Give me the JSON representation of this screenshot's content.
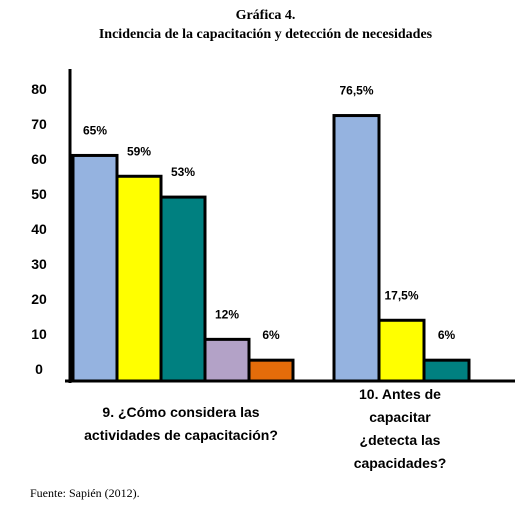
{
  "header": {
    "title": "Gráfica 4.",
    "subtitle": "Incidencia de la capacitación y detección de necesidades"
  },
  "footer": {
    "source": "Fuente: Sapién (2012)."
  },
  "chart_data": {
    "type": "bar",
    "y_ticks": [
      "80",
      "70",
      "60",
      "50",
      "40",
      "30",
      "20",
      "10",
      "0"
    ],
    "ylim": [
      0,
      80
    ],
    "grid": false,
    "groups": [
      {
        "label_lines": [
          "9. ¿Cómo considera las",
          "actividades de capacitación?"
        ],
        "bars": [
          {
            "value": 65,
            "label": "65%",
            "color": "#95b3e0"
          },
          {
            "value": 59,
            "label": "59%",
            "color": "#ffff00"
          },
          {
            "value": 53,
            "label": "53%",
            "color": "#008080"
          },
          {
            "value": 12,
            "label": "12%",
            "color": "#b3a2c7"
          },
          {
            "value": 6,
            "label": "6%",
            "color": "#e46c0a"
          }
        ]
      },
      {
        "label_lines": [
          "10. Antes de",
          "capacitar",
          "¿detecta las",
          "capacidades?"
        ],
        "bars": [
          {
            "value": 76.5,
            "label": "76,5%",
            "color": "#95b3e0"
          },
          {
            "value": 17.5,
            "label": "17,5%",
            "color": "#ffff00"
          },
          {
            "value": 6,
            "label": "6%",
            "color": "#008080"
          }
        ]
      }
    ]
  }
}
